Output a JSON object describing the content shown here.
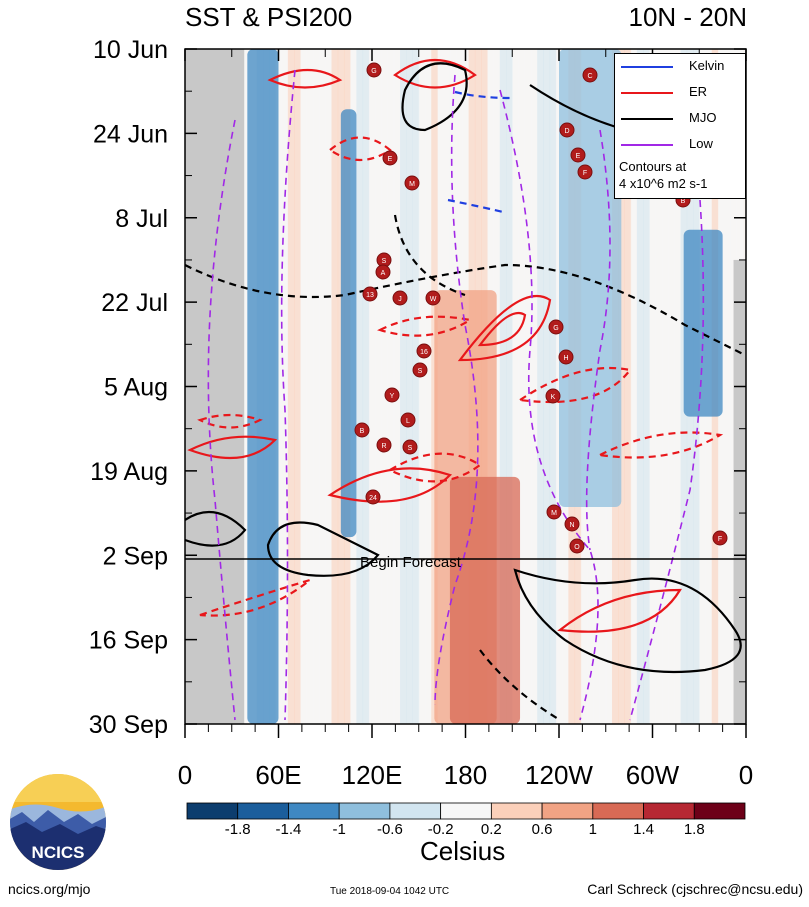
{
  "header": {
    "title": "SST & PSI200",
    "region": "10N - 20N"
  },
  "legend": {
    "items": [
      {
        "label": "Kelvin",
        "color": "#1f3fe0",
        "dash": "solid"
      },
      {
        "label": "ER",
        "color": "#e8171b",
        "dash": "solid"
      },
      {
        "label": "MJO",
        "color": "#000000",
        "dash": "solid"
      },
      {
        "label": "Low",
        "color": "#a128e6",
        "dash": "solid"
      }
    ],
    "note_line1": "Contours at",
    "note_line2": "4 x10^6 m2 s-1"
  },
  "annotation": {
    "forecast_label": "Begin Forecast"
  },
  "colorbar": {
    "ticks": [
      "-1.8",
      "-1.4",
      "-1",
      "-0.6",
      "-0.2",
      "0.2",
      "0.6",
      "1",
      "1.4",
      "1.8"
    ],
    "colors": [
      "#0c3d6e",
      "#1b5e9c",
      "#3f88c2",
      "#8fbfdd",
      "#d2e5f0",
      "#f7f7f7",
      "#fbd0ba",
      "#f1a384",
      "#d86a55",
      "#b62833",
      "#6d0018"
    ],
    "units": "Celsius"
  },
  "footer": {
    "left": "ncics.org/mjo",
    "middle": "Tue 2018-09-04 1042 UTC",
    "right": "Carl Schreck (cjschrec@ncsu.edu)"
  },
  "logo": {
    "text": "NCICS"
  },
  "chart_data": {
    "type": "heatmap",
    "title": "SST & PSI200",
    "subtitle": "10N - 20N",
    "x_ticks": [
      "0",
      "60E",
      "120E",
      "180",
      "120W",
      "60W",
      "0"
    ],
    "x_tick_degrees": [
      0,
      60,
      120,
      180,
      240,
      300,
      360
    ],
    "y_ticks": [
      "10 Jun",
      "24 Jun",
      "8 Jul",
      "22 Jul",
      "5 Aug",
      "19 Aug",
      "2 Sep",
      "16 Sep",
      "30 Sep"
    ],
    "y_tick_dates": [
      "2018-06-10",
      "2018-06-24",
      "2018-07-08",
      "2018-07-22",
      "2018-08-05",
      "2018-08-19",
      "2018-09-02",
      "2018-09-16",
      "2018-09-30"
    ],
    "forecast_start": "2018-09-02",
    "land_masked_longitudes": [
      [
        0,
        38
      ],
      [
        360,
        360
      ]
    ],
    "sst_anomaly_bands": [
      {
        "lon_range": [
          40,
          60
        ],
        "dates": [
          "2018-06-10",
          "2018-09-30"
        ],
        "anomaly_c": -1.2
      },
      {
        "lon_range": [
          100,
          110
        ],
        "dates": [
          "2018-06-20",
          "2018-08-30"
        ],
        "anomaly_c": -1.0
      },
      {
        "lon_range": [
          160,
          200
        ],
        "dates": [
          "2018-07-20",
          "2018-09-30"
        ],
        "anomaly_c": 0.8
      },
      {
        "lon_range": [
          170,
          215
        ],
        "dates": [
          "2018-08-20",
          "2018-09-30"
        ],
        "anomaly_c": 1.4
      },
      {
        "lon_range": [
          240,
          280
        ],
        "dates": [
          "2018-06-10",
          "2018-08-25"
        ],
        "anomaly_c": -0.6
      },
      {
        "lon_range": [
          320,
          345
        ],
        "dates": [
          "2018-07-10",
          "2018-08-10"
        ],
        "anomaly_c": -1.0
      }
    ],
    "storm_markers": [
      "G",
      "E",
      "M",
      "S",
      "A",
      "13",
      "J",
      "W",
      "16",
      "S",
      "L",
      "Y",
      "B",
      "R",
      "S",
      "24",
      "C",
      "D",
      "E",
      "F",
      "B",
      "G",
      "H",
      "K",
      "M",
      "N",
      "O",
      "F"
    ],
    "legend": [
      "Kelvin",
      "ER",
      "MJO",
      "Low"
    ],
    "legend_placement": "top-right",
    "colorbar_ticks": [
      -1.8,
      -1.4,
      -1,
      -0.6,
      -0.2,
      0.2,
      0.6,
      1,
      1.4,
      1.8
    ],
    "colorbar_units": "Celsius"
  }
}
